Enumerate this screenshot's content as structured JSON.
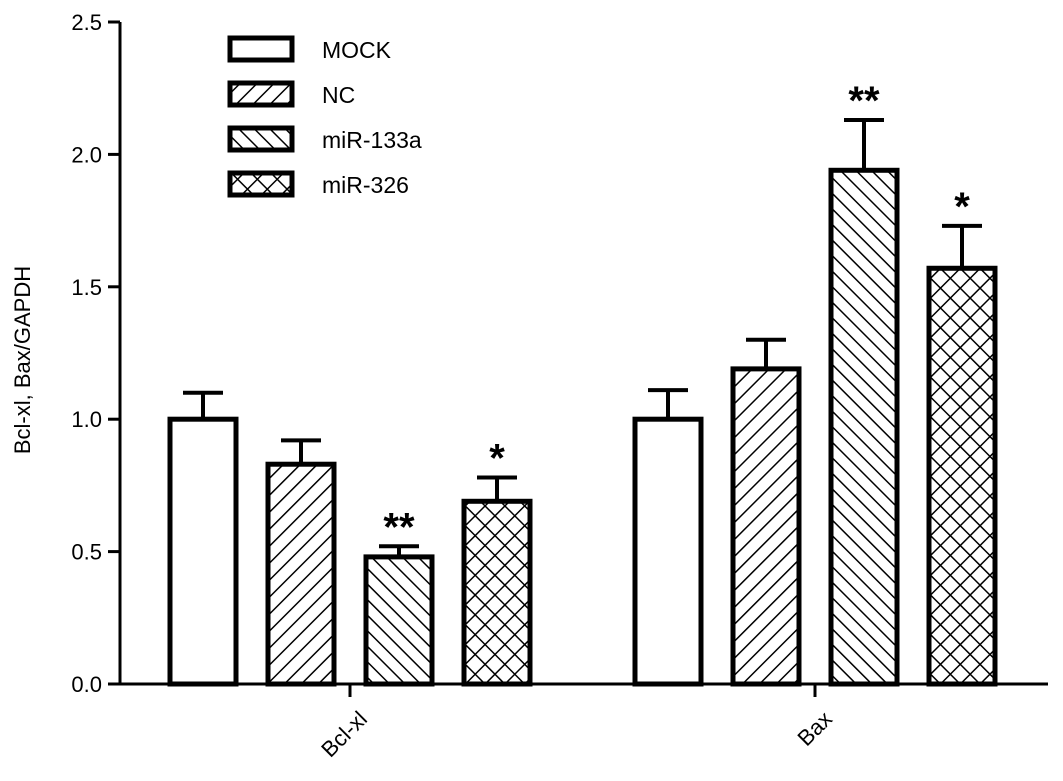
{
  "chart_data": {
    "type": "bar",
    "title": "",
    "xlabel": "",
    "ylabel": "Bcl-xl, Bax/GAPDH",
    "ylim": [
      0,
      2.5
    ],
    "yticks": [
      "0.0",
      "0.5",
      "1.0",
      "1.5",
      "2.0",
      "2.5"
    ],
    "categories": [
      "Bcl-xl",
      "Bax"
    ],
    "legend_position": "top-left",
    "grid": false,
    "series": [
      {
        "name": "MOCK",
        "pattern": "none",
        "values": [
          1.0,
          1.0
        ],
        "errors": [
          0.1,
          0.11
        ],
        "significance": [
          "",
          ""
        ]
      },
      {
        "name": "NC",
        "pattern": "diagonal-right",
        "values": [
          0.83,
          1.19
        ],
        "errors": [
          0.09,
          0.11
        ],
        "significance": [
          "",
          ""
        ]
      },
      {
        "name": "miR-133a",
        "pattern": "diagonal-left",
        "values": [
          0.48,
          1.94
        ],
        "errors": [
          0.04,
          0.19
        ],
        "significance": [
          "**",
          "**"
        ]
      },
      {
        "name": "miR-326",
        "pattern": "crosshatch",
        "values": [
          0.69,
          1.57
        ],
        "errors": [
          0.09,
          0.16
        ],
        "significance": [
          "*",
          "*"
        ]
      }
    ]
  }
}
